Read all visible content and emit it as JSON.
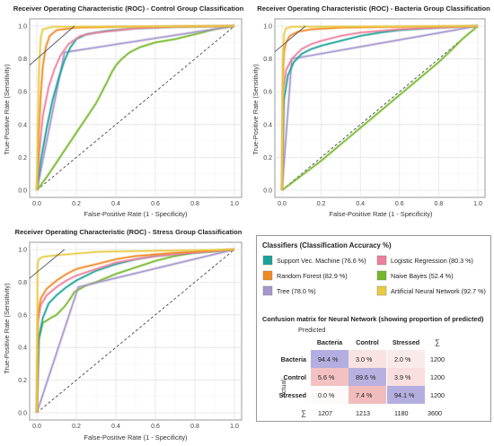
{
  "colors": {
    "svm": "#1aa39a",
    "rf": "#f08a24",
    "tree": "#a596cc",
    "lr": "#ee7f9c",
    "nb": "#76b72a",
    "ann": "#e8cc42",
    "diag": "#333333",
    "tangent": "#555566",
    "panel_border": "#999999"
  },
  "chart_data": [
    {
      "type": "line",
      "id": "control",
      "title": "Receiver Operating Characteristic (ROC) - Control Group Classification",
      "xlabel": "False-Positive Rate (1 - Specificity)",
      "ylabel": "True-Positive Rate (Sensitivity)",
      "xlim": [
        0,
        1
      ],
      "ylim": [
        0,
        1
      ],
      "xticks": [
        "0.0",
        "0.2",
        "0.4",
        "0.6",
        "0.8",
        "1.0"
      ],
      "yticks": [
        "0.0",
        "0.2",
        "0.4",
        "0.6",
        "0.8",
        "1.0"
      ],
      "grid": true,
      "diagonal": true,
      "tangent": [
        [
          0.0,
          0.8
        ],
        [
          0.19,
          1.0
        ]
      ],
      "series": [
        {
          "key": "nb",
          "points": [
            [
              0,
              0
            ],
            [
              0.05,
              0.08
            ],
            [
              0.1,
              0.17
            ],
            [
              0.15,
              0.26
            ],
            [
              0.2,
              0.35
            ],
            [
              0.25,
              0.44
            ],
            [
              0.3,
              0.53
            ],
            [
              0.33,
              0.6
            ],
            [
              0.36,
              0.67
            ],
            [
              0.38,
              0.72
            ],
            [
              0.4,
              0.76
            ],
            [
              0.43,
              0.8
            ],
            [
              0.47,
              0.84
            ],
            [
              0.52,
              0.87
            ],
            [
              0.6,
              0.9
            ],
            [
              0.7,
              0.92
            ],
            [
              0.8,
              0.95
            ],
            [
              0.9,
              0.98
            ],
            [
              1,
              1
            ]
          ]
        },
        {
          "key": "tree",
          "points": [
            [
              0,
              0
            ],
            [
              0.14,
              0.84
            ],
            [
              1,
              1
            ]
          ]
        },
        {
          "key": "svm",
          "points": [
            [
              0,
              0
            ],
            [
              0.02,
              0.18
            ],
            [
              0.05,
              0.38
            ],
            [
              0.08,
              0.55
            ],
            [
              0.11,
              0.68
            ],
            [
              0.14,
              0.79
            ],
            [
              0.17,
              0.87
            ],
            [
              0.2,
              0.92
            ],
            [
              0.25,
              0.95
            ],
            [
              0.35,
              0.97
            ],
            [
              0.5,
              0.985
            ],
            [
              0.7,
              0.995
            ],
            [
              1,
              1
            ]
          ]
        },
        {
          "key": "lr",
          "points": [
            [
              0,
              0
            ],
            [
              0.01,
              0.2
            ],
            [
              0.03,
              0.45
            ],
            [
              0.06,
              0.63
            ],
            [
              0.09,
              0.74
            ],
            [
              0.12,
              0.82
            ],
            [
              0.16,
              0.89
            ],
            [
              0.22,
              0.94
            ],
            [
              0.3,
              0.96
            ],
            [
              0.5,
              0.985
            ],
            [
              0.7,
              0.995
            ],
            [
              1,
              1
            ]
          ]
        },
        {
          "key": "rf",
          "points": [
            [
              0,
              0
            ],
            [
              0.01,
              0.35
            ],
            [
              0.02,
              0.58
            ],
            [
              0.03,
              0.75
            ],
            [
              0.045,
              0.87
            ],
            [
              0.065,
              0.94
            ],
            [
              0.1,
              0.975
            ],
            [
              0.2,
              0.99
            ],
            [
              0.4,
              0.995
            ],
            [
              1,
              1
            ]
          ]
        },
        {
          "key": "ann",
          "points": [
            [
              0,
              0
            ],
            [
              0.005,
              0.4
            ],
            [
              0.012,
              0.75
            ],
            [
              0.02,
              0.93
            ],
            [
              0.03,
              0.98
            ],
            [
              0.08,
              0.995
            ],
            [
              1,
              1
            ]
          ]
        }
      ]
    },
    {
      "type": "line",
      "id": "bacteria",
      "title": "Receiver Operating Characteristic (ROC) - Bacteria Group Classification",
      "xlabel": "False-Positive Rate (1 - Specificity)",
      "ylabel": "True-Positive Rate (Sensitivity)",
      "xlim": [
        0,
        1
      ],
      "ylim": [
        0,
        1
      ],
      "xticks": [
        "0.0",
        "0.2",
        "0.4",
        "0.6",
        "0.8",
        "1.0"
      ],
      "yticks": [
        "0.0",
        "0.2",
        "0.4",
        "0.6",
        "0.8",
        "1.0"
      ],
      "grid": true,
      "diagonal": true,
      "tangent": [
        [
          0.0,
          0.88
        ],
        [
          0.12,
          1.0
        ]
      ],
      "series": [
        {
          "key": "nb",
          "points": [
            [
              0,
              0
            ],
            [
              0.1,
              0.09
            ],
            [
              0.2,
              0.18
            ],
            [
              0.3,
              0.28
            ],
            [
              0.4,
              0.38
            ],
            [
              0.5,
              0.48
            ],
            [
              0.6,
              0.58
            ],
            [
              0.7,
              0.68
            ],
            [
              0.8,
              0.78
            ],
            [
              0.87,
              0.86
            ],
            [
              0.92,
              0.92
            ],
            [
              0.96,
              0.96
            ],
            [
              1,
              1
            ]
          ]
        },
        {
          "key": "tree",
          "points": [
            [
              0,
              0
            ],
            [
              0.05,
              0.8
            ],
            [
              1,
              1
            ]
          ]
        },
        {
          "key": "svm",
          "points": [
            [
              0,
              0
            ],
            [
              0.01,
              0.55
            ],
            [
              0.03,
              0.7
            ],
            [
              0.06,
              0.78
            ],
            [
              0.1,
              0.83
            ],
            [
              0.15,
              0.86
            ],
            [
              0.2,
              0.88
            ],
            [
              0.3,
              0.91
            ],
            [
              0.4,
              0.94
            ],
            [
              0.5,
              0.96
            ],
            [
              0.6,
              0.975
            ],
            [
              0.8,
              0.99
            ],
            [
              1,
              1
            ]
          ]
        },
        {
          "key": "lr",
          "points": [
            [
              0,
              0
            ],
            [
              0.005,
              0.6
            ],
            [
              0.02,
              0.73
            ],
            [
              0.05,
              0.8
            ],
            [
              0.1,
              0.86
            ],
            [
              0.15,
              0.89
            ],
            [
              0.2,
              0.91
            ],
            [
              0.3,
              0.94
            ],
            [
              0.4,
              0.96
            ],
            [
              0.6,
              0.98
            ],
            [
              1,
              1
            ]
          ]
        },
        {
          "key": "rf",
          "points": [
            [
              0,
              0
            ],
            [
              0.005,
              0.7
            ],
            [
              0.01,
              0.84
            ],
            [
              0.02,
              0.9
            ],
            [
              0.04,
              0.94
            ],
            [
              0.08,
              0.965
            ],
            [
              0.15,
              0.98
            ],
            [
              0.3,
              0.99
            ],
            [
              0.6,
              0.995
            ],
            [
              1,
              1
            ]
          ]
        },
        {
          "key": "ann",
          "points": [
            [
              0,
              0
            ],
            [
              0.004,
              0.8
            ],
            [
              0.01,
              0.95
            ],
            [
              0.02,
              0.985
            ],
            [
              0.05,
              0.995
            ],
            [
              1,
              1
            ]
          ]
        }
      ]
    },
    {
      "type": "line",
      "id": "stress",
      "title": "Receiver Operating Characteristic (ROC) - Stress Group Classification",
      "xlabel": "False-Positive Rate (1 - Specificity)",
      "ylabel": "True-Positive Rate (Sensitivity)",
      "xlim": [
        0,
        1
      ],
      "ylim": [
        0,
        1
      ],
      "xticks": [
        "0.0",
        "0.2",
        "0.4",
        "0.6",
        "0.8",
        "1.0"
      ],
      "yticks": [
        "0.0",
        "0.2",
        "0.4",
        "0.6",
        "0.8",
        "1.0"
      ],
      "grid": true,
      "diagonal": true,
      "tangent": [
        [
          0.0,
          0.86
        ],
        [
          0.14,
          1.0
        ]
      ],
      "series": [
        {
          "key": "nb",
          "points": [
            [
              0,
              0
            ],
            [
              0.005,
              0.25
            ],
            [
              0.01,
              0.45
            ],
            [
              0.03,
              0.55
            ],
            [
              0.07,
              0.58
            ],
            [
              0.1,
              0.6
            ],
            [
              0.14,
              0.65
            ],
            [
              0.17,
              0.7
            ],
            [
              0.19,
              0.74
            ],
            [
              0.25,
              0.78
            ],
            [
              0.3,
              0.8
            ],
            [
              0.4,
              0.85
            ],
            [
              0.5,
              0.89
            ],
            [
              0.6,
              0.93
            ],
            [
              0.7,
              0.96
            ],
            [
              0.8,
              0.98
            ],
            [
              1,
              1
            ]
          ]
        },
        {
          "key": "tree",
          "points": [
            [
              0,
              0
            ],
            [
              0.21,
              0.77
            ],
            [
              1,
              1
            ]
          ]
        },
        {
          "key": "svm",
          "points": [
            [
              0,
              0
            ],
            [
              0.01,
              0.45
            ],
            [
              0.03,
              0.58
            ],
            [
              0.06,
              0.67
            ],
            [
              0.1,
              0.72
            ],
            [
              0.15,
              0.77
            ],
            [
              0.2,
              0.81
            ],
            [
              0.3,
              0.87
            ],
            [
              0.4,
              0.91
            ],
            [
              0.5,
              0.94
            ],
            [
              0.6,
              0.96
            ],
            [
              0.8,
              0.98
            ],
            [
              1,
              1
            ]
          ]
        },
        {
          "key": "lr",
          "points": [
            [
              0,
              0
            ],
            [
              0.005,
              0.55
            ],
            [
              0.02,
              0.66
            ],
            [
              0.05,
              0.72
            ],
            [
              0.1,
              0.77
            ],
            [
              0.15,
              0.81
            ],
            [
              0.2,
              0.84
            ],
            [
              0.3,
              0.88
            ],
            [
              0.4,
              0.92
            ],
            [
              0.5,
              0.94
            ],
            [
              0.6,
              0.96
            ],
            [
              0.8,
              0.98
            ],
            [
              1,
              1
            ]
          ]
        },
        {
          "key": "rf",
          "points": [
            [
              0,
              0
            ],
            [
              0.005,
              0.6
            ],
            [
              0.02,
              0.7
            ],
            [
              0.05,
              0.76
            ],
            [
              0.1,
              0.81
            ],
            [
              0.15,
              0.85
            ],
            [
              0.2,
              0.88
            ],
            [
              0.3,
              0.91
            ],
            [
              0.4,
              0.94
            ],
            [
              0.5,
              0.96
            ],
            [
              0.7,
              0.98
            ],
            [
              1,
              1
            ]
          ]
        },
        {
          "key": "ann",
          "points": [
            [
              0,
              0
            ],
            [
              0.004,
              0.9
            ],
            [
              0.01,
              0.94
            ],
            [
              0.03,
              0.955
            ],
            [
              0.1,
              0.965
            ],
            [
              0.2,
              0.975
            ],
            [
              0.3,
              0.985
            ],
            [
              0.5,
              0.99
            ],
            [
              0.8,
              0.995
            ],
            [
              1,
              1
            ]
          ]
        }
      ]
    }
  ],
  "legend": {
    "title": "Classifiers (Classification Accuracy %)",
    "items": [
      {
        "key": "svm",
        "label": "Support Vec. Machine (76.6 %)"
      },
      {
        "key": "lr",
        "label": "Logistic Regression (80.3 %)"
      },
      {
        "key": "rf",
        "label": "Random Forest (82.9 %)"
      },
      {
        "key": "nb",
        "label": "Naive Bayes (52.4 %)"
      },
      {
        "key": "tree",
        "label": "Tree (78.0 %)"
      },
      {
        "key": "ann",
        "label": "Artificial Neural Network (92.7 %)"
      }
    ]
  },
  "confusion": {
    "title": "Confusion matrix for Neural Network (showing proportion of predicted)",
    "predicted_label": "Predicted",
    "actual_label": "Actual",
    "col_headers": [
      "Bacteria",
      "Control",
      "Stressed",
      "∑"
    ],
    "rows": [
      {
        "label": "Bacteria",
        "cells": [
          "94.4 %",
          "3.0 %",
          "2.0 %"
        ],
        "total": "1200"
      },
      {
        "label": "Control",
        "cells": [
          "5.6 %",
          "89.6 %",
          "3.9 %"
        ],
        "total": "1200"
      },
      {
        "label": "Stressed",
        "cells": [
          "0.0 %",
          "7.4 %",
          "94.1 %"
        ],
        "total": "1200"
      }
    ],
    "sum_label": "∑",
    "col_totals": [
      "1207",
      "1213",
      "1180",
      "3600"
    ],
    "cell_colors": [
      [
        "#b4aee0",
        "#f9e2e2",
        "#fbeaea"
      ],
      [
        "#f3c1c1",
        "#b8b1e0",
        "#f8dede"
      ],
      [
        "#fefafa",
        "#f1bcbc",
        "#b4aee0"
      ]
    ]
  }
}
